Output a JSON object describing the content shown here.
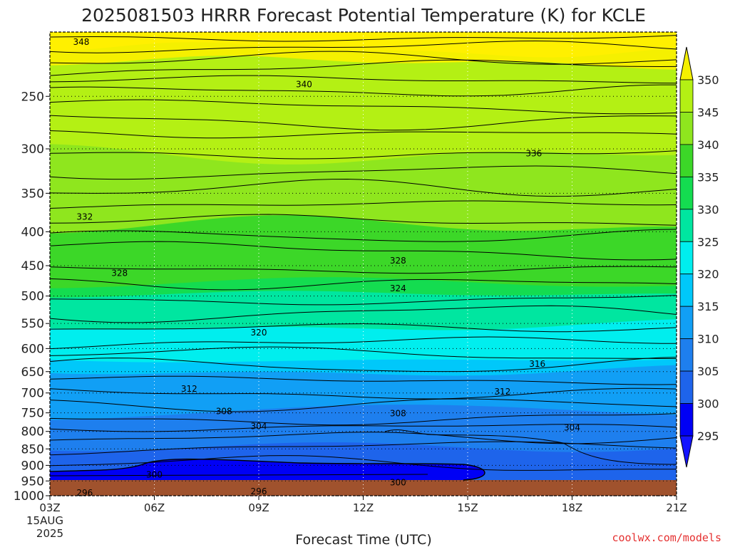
{
  "chart_data": {
    "type": "heatmap",
    "title": "2025081503 HRRR Forecast Potential Temperature (K) for KCLE",
    "xlabel": "Forecast Time (UTC)",
    "date_label": [
      "15AUG",
      "2025"
    ],
    "credit": "coolwx.com/models",
    "x_ticks": [
      "03Z",
      "06Z",
      "09Z",
      "12Z",
      "15Z",
      "18Z",
      "21Z"
    ],
    "x_hours": [
      3,
      6,
      9,
      12,
      15,
      18,
      21
    ],
    "y_ticks": [
      250,
      300,
      350,
      400,
      450,
      500,
      550,
      600,
      650,
      700,
      750,
      800,
      850,
      900,
      950,
      1000
    ],
    "ylim": [
      1000,
      200
    ],
    "y_scale": "log",
    "colorbar_ticks": [
      295,
      300,
      305,
      310,
      315,
      320,
      325,
      330,
      335,
      340,
      345,
      350
    ],
    "colors": {
      "le295": "#1414ff",
      "295-300": "#0000f5",
      "300-305": "#1e64eb",
      "305-310": "#1e7fee",
      "310-315": "#119ff5",
      "315-320": "#00c8fa",
      "320-325": "#00eeee",
      "325-330": "#00e6a0",
      "330-335": "#14dc50",
      "335-340": "#3cd728",
      "340-345": "#8fe61e",
      "345-350": "#b4f014",
      "ge350": "#f5f000",
      "top": "#fff000",
      "ground": "#a0522d"
    },
    "contour_labels": [
      {
        "value": "348",
        "x": 3.9,
        "p": 207
      },
      {
        "value": "340",
        "x": 10.3,
        "p": 240
      },
      {
        "value": "336",
        "x": 16.9,
        "p": 305
      },
      {
        "value": "332",
        "x": 4.0,
        "p": 380
      },
      {
        "value": "328",
        "x": 5.0,
        "p": 462
      },
      {
        "value": "328",
        "x": 13.0,
        "p": 442
      },
      {
        "value": "324",
        "x": 13.0,
        "p": 487
      },
      {
        "value": "320",
        "x": 9.0,
        "p": 568
      },
      {
        "value": "316",
        "x": 17.0,
        "p": 633
      },
      {
        "value": "312",
        "x": 7.0,
        "p": 690
      },
      {
        "value": "312",
        "x": 16.0,
        "p": 697
      },
      {
        "value": "308",
        "x": 8.0,
        "p": 746
      },
      {
        "value": "308",
        "x": 13.0,
        "p": 752
      },
      {
        "value": "304",
        "x": 9.0,
        "p": 786
      },
      {
        "value": "304",
        "x": 18.0,
        "p": 790
      },
      {
        "value": "300",
        "x": 6.0,
        "p": 930
      },
      {
        "value": "300",
        "x": 13.0,
        "p": 955
      },
      {
        "value": "296",
        "x": 4.0,
        "p": 990
      },
      {
        "value": "296",
        "x": 9.0,
        "p": 985
      }
    ]
  }
}
